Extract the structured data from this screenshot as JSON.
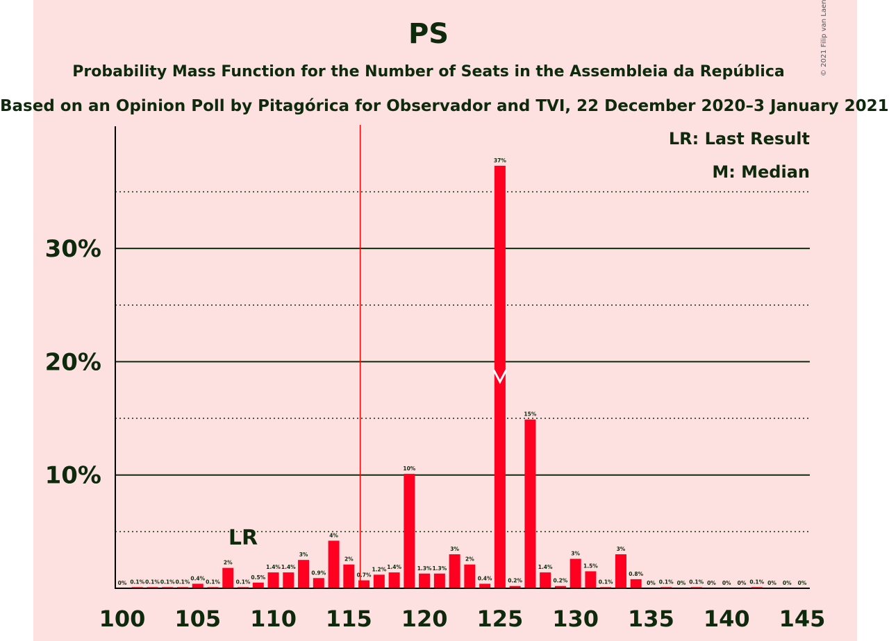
{
  "colors": {
    "background": "#fde0e0",
    "bar": "#ff0020",
    "text": "#0d2a0d",
    "last_result_line": "#ff0000"
  },
  "copyright": "© 2021 Filip van Laenen",
  "legend": {
    "last_result": "LR: Last Result",
    "median": "M: Median"
  },
  "chart_data": {
    "type": "bar",
    "title": "PS",
    "subtitle": "Probability Mass Function for the Number of Seats in the Assembleia da República",
    "subtitle2": "Based on an Opinion Poll by Pitagórica for Observador and TVI, 22 December 2020–3 January 2021",
    "x": [
      100,
      101,
      102,
      103,
      104,
      105,
      106,
      107,
      108,
      109,
      110,
      111,
      112,
      113,
      114,
      115,
      116,
      117,
      118,
      119,
      120,
      121,
      122,
      123,
      124,
      125,
      126,
      127,
      128,
      129,
      130,
      131,
      132,
      133,
      134,
      135,
      136,
      137,
      138,
      139,
      140,
      141,
      142,
      143,
      144,
      145
    ],
    "values": [
      0,
      0.1,
      0.1,
      0.1,
      0.1,
      0.4,
      0.1,
      1.8,
      0.1,
      0.5,
      1.4,
      1.4,
      2.5,
      0.9,
      4.2,
      2.1,
      0.7,
      1.2,
      1.4,
      10.1,
      1.3,
      1.3,
      3.0,
      2.1,
      0.4,
      37.3,
      0.2,
      14.9,
      1.4,
      0.2,
      2.6,
      1.5,
      0.1,
      3.0,
      0.8,
      0,
      0.1,
      0,
      0.1,
      0,
      0,
      0,
      0.1,
      0,
      0,
      0
    ],
    "labels": [
      "0%",
      "0.1%",
      "0.1%",
      "0.1%",
      "0.1%",
      "0.4%",
      "0.1%",
      "2%",
      "0.1%",
      "0.5%",
      "1.4%",
      "1.4%",
      "3%",
      "0.9%",
      "4%",
      "2%",
      "0.7%",
      "1.2%",
      "1.4%",
      "10%",
      "1.3%",
      "1.3%",
      "3%",
      "2%",
      "0.4%",
      "37%",
      "0.2%",
      "15%",
      "1.4%",
      "0.2%",
      "3%",
      "1.5%",
      "0.1%",
      "3%",
      "0.8%",
      "0%",
      "0.1%",
      "0%",
      "0.1%",
      "0%",
      "0%",
      "0%",
      "0.1%",
      "0%",
      "0%",
      "0%"
    ],
    "x_ticks": [
      100,
      105,
      110,
      115,
      120,
      125,
      130,
      135,
      140,
      145
    ],
    "y_ticks_major": [
      10,
      20,
      30
    ],
    "y_ticks_minor": [
      5,
      15,
      25,
      35
    ],
    "y_tick_labels": [
      "10%",
      "20%",
      "30%"
    ],
    "ylim": [
      0,
      40.5
    ],
    "last_result": {
      "seat": 108,
      "label": "LR"
    },
    "majority_line_seat": 115.75,
    "median": {
      "seat": 125,
      "label": "M"
    },
    "grid": "horizontal"
  }
}
